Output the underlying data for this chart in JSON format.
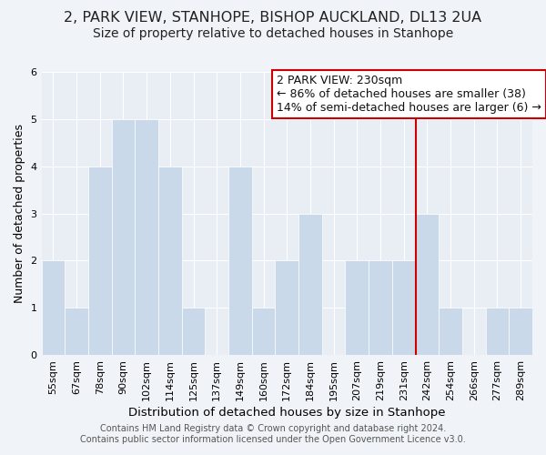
{
  "title": "2, PARK VIEW, STANHOPE, BISHOP AUCKLAND, DL13 2UA",
  "subtitle": "Size of property relative to detached houses in Stanhope",
  "xlabel": "Distribution of detached houses by size in Stanhope",
  "ylabel": "Number of detached properties",
  "bar_labels": [
    "55sqm",
    "67sqm",
    "78sqm",
    "90sqm",
    "102sqm",
    "114sqm",
    "125sqm",
    "137sqm",
    "149sqm",
    "160sqm",
    "172sqm",
    "184sqm",
    "195sqm",
    "207sqm",
    "219sqm",
    "231sqm",
    "242sqm",
    "254sqm",
    "266sqm",
    "277sqm",
    "289sqm"
  ],
  "bar_values": [
    2,
    1,
    4,
    5,
    5,
    4,
    1,
    0,
    4,
    1,
    2,
    3,
    0,
    2,
    2,
    2,
    3,
    1,
    0,
    1,
    1
  ],
  "bar_color": "#c9d9ea",
  "bar_edge_color": "#ffffff",
  "vline_color": "#cc0000",
  "vline_index": 15,
  "ylim": [
    0,
    6
  ],
  "yticks": [
    0,
    1,
    2,
    3,
    4,
    5,
    6
  ],
  "annotation_title": "2 PARK VIEW: 230sqm",
  "annotation_line1": "← 86% of detached houses are smaller (38)",
  "annotation_line2": "14% of semi-detached houses are larger (6) →",
  "annotation_box_facecolor": "#ffffff",
  "annotation_box_edgecolor": "#cc0000",
  "footer_line1": "Contains HM Land Registry data © Crown copyright and database right 2024.",
  "footer_line2": "Contains public sector information licensed under the Open Government Licence v3.0.",
  "background_color": "#f0f4f8",
  "plot_bg_color": "#e8eef4",
  "grid_color": "#ffffff",
  "title_fontsize": 11.5,
  "subtitle_fontsize": 10,
  "xlabel_fontsize": 9.5,
  "ylabel_fontsize": 9,
  "tick_fontsize": 8,
  "annotation_fontsize": 9,
  "footer_fontsize": 7
}
